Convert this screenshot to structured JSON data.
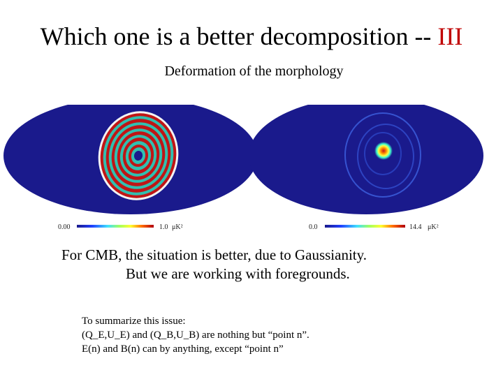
{
  "slide": {
    "title_main": "Which one is a better decomposition --",
    "title_accent": "III",
    "subtitle": "Deformation of the morphology",
    "colors": {
      "accent": "#c00000",
      "map_background": "#1a1a8c"
    }
  },
  "maps": {
    "left": {
      "colorbar_min": "0.00",
      "colorbar_max": "1.0",
      "colorbar_unit": "μK²",
      "icon": "concentric-rings-map"
    },
    "right": {
      "colorbar_min": "0.0",
      "colorbar_max": "14.4",
      "colorbar_unit": "μK²",
      "icon": "central-point-map"
    }
  },
  "body": {
    "line1": "For CMB, the situation is better, due to Gaussianity.",
    "line2": "But we are working with foregrounds."
  },
  "summary": {
    "line1": "To summarize this issue:",
    "line2": "(Q_E,U_E) and (Q_B,U_B) are nothing but “point n”.",
    "line3": "E(n) and B(n) can by anything, except “point n”"
  }
}
